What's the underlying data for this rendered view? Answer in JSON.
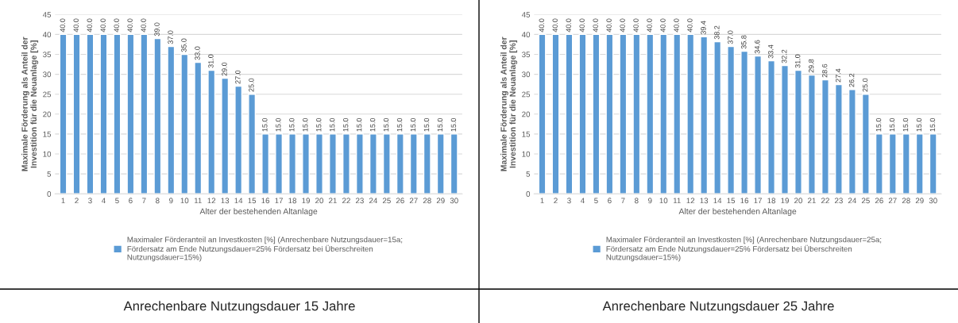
{
  "chart_data": [
    {
      "type": "bar",
      "xlabel": "Alter der bestehenden Altanlage",
      "ylabel": "Maximale Förderung als Anteil der\nInvestition für die Neuanlage [%]",
      "categories": [
        "1",
        "2",
        "3",
        "4",
        "5",
        "6",
        "7",
        "8",
        "9",
        "10",
        "11",
        "12",
        "13",
        "14",
        "15",
        "16",
        "17",
        "18",
        "19",
        "20",
        "21",
        "22",
        "23",
        "24",
        "25",
        "26",
        "27",
        "28",
        "29",
        "30"
      ],
      "series": [
        {
          "name": "Maximaler Förderanteil an Investkosten [%] (Anrechenbare Nutzungsdauer=15a;\nFördersatz am Ende Nutzungsdauer=25% Fördersatz bei Überschreiten\nNutzungsdauer=15%)",
          "color": "#5b9bd5",
          "values": [
            40,
            40,
            40,
            40,
            40,
            40,
            40,
            39,
            37,
            35,
            33,
            31,
            29,
            27,
            25,
            15,
            15,
            15,
            15,
            15,
            15,
            15,
            15,
            15,
            15,
            15,
            15,
            15,
            15,
            15
          ],
          "value_labels": [
            "40.0",
            "40.0",
            "40.0",
            "40.0",
            "40.0",
            "40.0",
            "40.0",
            "39.0",
            "37.0",
            "35.0",
            "33.0",
            "31.0",
            "29.0",
            "27.0",
            "25.0",
            "15.0",
            "15.0",
            "15.0",
            "15.0",
            "15.0",
            "15.0",
            "15.0",
            "15.0",
            "15.0",
            "15.0",
            "15.0",
            "15.0",
            "15.0",
            "15.0",
            "15.0"
          ]
        }
      ],
      "ylim": [
        0,
        45
      ],
      "yticks": [
        0,
        5,
        10,
        15,
        20,
        25,
        30,
        35,
        40,
        45
      ],
      "grid": "y",
      "legend": "bottom",
      "annotations": [
        "Anrechenbare Nutzungsdauer 15 Jahre"
      ]
    },
    {
      "type": "bar",
      "xlabel": "Alter der bestehenden Altanlage",
      "ylabel": "Maximale Förderung als Anteil der\nInvestition für die Neuanlage [%]",
      "categories": [
        "1",
        "2",
        "3",
        "4",
        "5",
        "6",
        "7",
        "8",
        "9",
        "10",
        "11",
        "12",
        "13",
        "14",
        "15",
        "16",
        "17",
        "18",
        "19",
        "20",
        "21",
        "22",
        "23",
        "24",
        "25",
        "26",
        "27",
        "28",
        "29",
        "30"
      ],
      "series": [
        {
          "name": "Maximaler Förderanteil an Investkosten [%] (Anrechenbare Nutzungsdauer=25a;\nFördersatz am Ende Nutzungsdauer=25% Fördersatz bei Überschreiten\nNutzungsdauer=15%)",
          "color": "#5b9bd5",
          "values": [
            40,
            40,
            40,
            40,
            40,
            40,
            40,
            40,
            40,
            40,
            40,
            40,
            39.4,
            38.2,
            37.0,
            35.8,
            34.6,
            33.4,
            32.2,
            31.0,
            29.8,
            28.6,
            27.4,
            26.2,
            25.0,
            15,
            15,
            15,
            15,
            15
          ],
          "value_labels": [
            "40.0",
            "40.0",
            "40.0",
            "40.0",
            "40.0",
            "40.0",
            "40.0",
            "40.0",
            "40.0",
            "40.0",
            "40.0",
            "40.0",
            "39.4",
            "38.2",
            "37.0",
            "35.8",
            "34.6",
            "33.4",
            "32.2",
            "31.0",
            "29.8",
            "28.6",
            "27.4",
            "26.2",
            "25.0",
            "15.0",
            "15.0",
            "15.0",
            "15.0",
            "15.0"
          ]
        }
      ],
      "ylim": [
        0,
        45
      ],
      "yticks": [
        0,
        5,
        10,
        15,
        20,
        25,
        30,
        35,
        40,
        45
      ],
      "grid": "y",
      "legend": "bottom",
      "annotations": [
        "Anrechenbare Nutzungsdauer 25 Jahre"
      ]
    }
  ]
}
